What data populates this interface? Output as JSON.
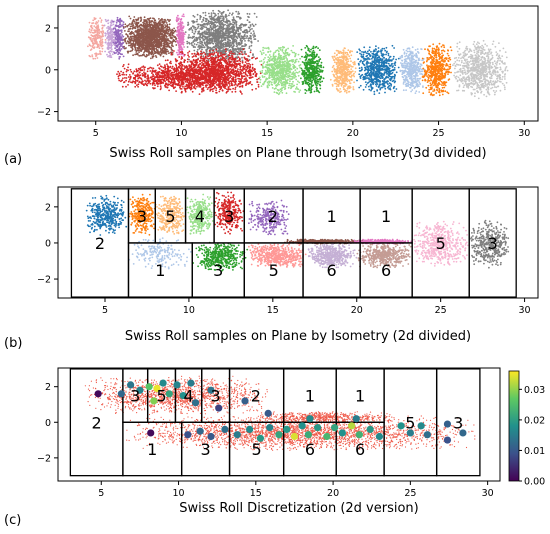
{
  "chart_data": [
    {
      "type": "scatter",
      "panel_label": "(a)",
      "title": "Swiss Roll samples on Plane through Isometry(3d divided)",
      "xlim": [
        2.8,
        30.8
      ],
      "ylim": [
        -2.45,
        3.05
      ],
      "xticks": [
        5,
        10,
        15,
        20,
        25,
        30
      ],
      "yticks": [
        -2,
        0,
        2
      ],
      "xtick_labels": [
        "5",
        "10",
        "15",
        "20",
        "25",
        "30"
      ],
      "ytick_labels": [
        "−2",
        "0",
        "2"
      ],
      "clusters": [
        {
          "x": [
            4.5,
            5.6
          ],
          "y": [
            0.4,
            2.6
          ],
          "color": "#f4a6a0",
          "n": 200
        },
        {
          "x": [
            5.5,
            6.2
          ],
          "y": [
            0.5,
            2.6
          ],
          "color": "#c7a4d8",
          "n": 160
        },
        {
          "x": [
            6.0,
            6.7
          ],
          "y": [
            0.5,
            2.6
          ],
          "color": "#9467bd",
          "n": 180
        },
        {
          "x": [
            6.6,
            9.8
          ],
          "y": [
            0.5,
            2.6
          ],
          "color": "#8c564b",
          "n": 1400
        },
        {
          "x": [
            9.7,
            10.2
          ],
          "y": [
            0.5,
            2.7
          ],
          "color": "#e377c2",
          "n": 200
        },
        {
          "x": [
            10.2,
            14.5
          ],
          "y": [
            0.3,
            2.9
          ],
          "color": "#7f7f7f",
          "n": 1200
        },
        {
          "x": [
            6.0,
            13.0
          ],
          "y": [
            -1.0,
            0.3
          ],
          "color": "#d62728",
          "n": 700
        },
        {
          "x": [
            9.0,
            14.8
          ],
          "y": [
            -1.2,
            1.0
          ],
          "color": "#d62728",
          "n": 1400
        },
        {
          "x": [
            14.5,
            17.0
          ],
          "y": [
            -1.2,
            1.2
          ],
          "color": "#98df8a",
          "n": 650
        },
        {
          "x": [
            16.9,
            18.3
          ],
          "y": [
            -1.2,
            1.2
          ],
          "color": "#2ca02c",
          "n": 420
        },
        {
          "x": [
            18.7,
            20.2
          ],
          "y": [
            -1.2,
            1.2
          ],
          "color": "#ffbb78",
          "n": 420
        },
        {
          "x": [
            20.2,
            22.7
          ],
          "y": [
            -1.2,
            1.2
          ],
          "color": "#1f77b4",
          "n": 650
        },
        {
          "x": [
            22.7,
            24.2
          ],
          "y": [
            -1.2,
            1.2
          ],
          "color": "#aec7e8",
          "n": 420
        },
        {
          "x": [
            24.0,
            25.8
          ],
          "y": [
            -1.3,
            1.3
          ],
          "color": "#ff7f0e",
          "n": 520
        },
        {
          "x": [
            25.8,
            29.1
          ],
          "y": [
            -1.4,
            1.4
          ],
          "color": "#c7c7c7",
          "n": 750
        }
      ]
    },
    {
      "type": "scatter",
      "panel_label": "(b)",
      "title": "Swiss Roll samples on Plane by Isometry (2d divided)",
      "xlim": [
        2.2,
        30.8
      ],
      "ylim": [
        -3.05,
        3.1
      ],
      "xticks": [
        5,
        10,
        15,
        20,
        25,
        30
      ],
      "yticks": [
        -2,
        0,
        2
      ],
      "xtick_labels": [
        "5",
        "10",
        "15",
        "20",
        "25",
        "30"
      ],
      "ytick_labels": [
        "−2",
        "0",
        "2"
      ],
      "clusters": [
        {
          "x": [
            3.8,
            6.4
          ],
          "y": [
            0.4,
            2.7
          ],
          "color": "#1f77b4",
          "n": 380
        },
        {
          "x": [
            6.4,
            8.0
          ],
          "y": [
            0.4,
            2.7
          ],
          "color": "#ff7f0e",
          "n": 300
        },
        {
          "x": [
            8.0,
            9.8
          ],
          "y": [
            0.4,
            2.7
          ],
          "color": "#ffbb78",
          "n": 300
        },
        {
          "x": [
            9.8,
            11.5
          ],
          "y": [
            0.4,
            2.7
          ],
          "color": "#98df8a",
          "n": 300
        },
        {
          "x": [
            11.5,
            13.3
          ],
          "y": [
            0.4,
            2.9
          ],
          "color": "#d62728",
          "n": 300
        },
        {
          "x": [
            13.5,
            16.0
          ],
          "y": [
            0.4,
            2.4
          ],
          "color": "#9467bd",
          "n": 280
        },
        {
          "x": [
            15.5,
            20.5
          ],
          "y": [
            -0.05,
            0.2
          ],
          "color": "#8c564b",
          "n": 380
        },
        {
          "x": [
            19.5,
            23.3
          ],
          "y": [
            -0.05,
            0.2
          ],
          "color": "#e377c2",
          "n": 280
        },
        {
          "x": [
            6.4,
            10.2
          ],
          "y": [
            -1.5,
            0.4
          ],
          "color": "#aec7e8",
          "n": 180
        },
        {
          "x": [
            10.2,
            13.5
          ],
          "y": [
            -1.6,
            0.1
          ],
          "color": "#2ca02c",
          "n": 420
        },
        {
          "x": [
            13.5,
            17.0
          ],
          "y": [
            -1.4,
            0.0
          ],
          "color": "#ff9896",
          "n": 500
        },
        {
          "x": [
            17.0,
            20.0
          ],
          "y": [
            -1.4,
            0.0
          ],
          "color": "#c5b0d5",
          "n": 480
        },
        {
          "x": [
            20.0,
            23.3
          ],
          "y": [
            -1.4,
            0.0
          ],
          "color": "#c49c94",
          "n": 480
        },
        {
          "x": [
            23.3,
            26.7
          ],
          "y": [
            -1.4,
            1.2
          ],
          "color": "#f7b6d2",
          "n": 500
        },
        {
          "x": [
            26.7,
            29.2
          ],
          "y": [
            -1.4,
            1.3
          ],
          "color": "#7f7f7f",
          "n": 420
        }
      ],
      "partition_boxes": [
        [
          3.0,
          6.4,
          -3.0,
          3.0
        ],
        [
          6.4,
          8.0,
          0.0,
          3.0
        ],
        [
          8.0,
          9.8,
          0.0,
          3.0
        ],
        [
          9.8,
          11.5,
          0.0,
          3.0
        ],
        [
          11.5,
          13.3,
          0.0,
          3.0
        ],
        [
          13.3,
          16.8,
          0.0,
          3.0
        ],
        [
          16.8,
          20.2,
          0.0,
          3.0
        ],
        [
          20.2,
          23.3,
          0.0,
          3.0
        ],
        [
          6.4,
          10.2,
          -3.0,
          0.0
        ],
        [
          10.2,
          13.3,
          -3.0,
          0.0
        ],
        [
          13.3,
          16.8,
          -3.0,
          0.0
        ],
        [
          16.8,
          20.2,
          -3.0,
          0.0
        ],
        [
          20.2,
          23.3,
          -3.0,
          0.0
        ],
        [
          23.3,
          26.7,
          -3.0,
          3.0
        ],
        [
          26.7,
          29.5,
          -3.0,
          3.0
        ]
      ],
      "cell_labels": [
        {
          "text": "2",
          "x": 4.7,
          "y": 0.0
        },
        {
          "text": "3",
          "x": 7.2,
          "y": 1.5
        },
        {
          "text": "5",
          "x": 8.9,
          "y": 1.5
        },
        {
          "text": "4",
          "x": 10.65,
          "y": 1.5
        },
        {
          "text": "3",
          "x": 12.4,
          "y": 1.5
        },
        {
          "text": "2",
          "x": 15.0,
          "y": 1.5
        },
        {
          "text": "1",
          "x": 18.5,
          "y": 1.5
        },
        {
          "text": "1",
          "x": 21.75,
          "y": 1.5
        },
        {
          "text": "1",
          "x": 8.3,
          "y": -1.5
        },
        {
          "text": "3",
          "x": 11.75,
          "y": -1.5
        },
        {
          "text": "5",
          "x": 15.05,
          "y": -1.5
        },
        {
          "text": "6",
          "x": 18.5,
          "y": -1.5
        },
        {
          "text": "6",
          "x": 21.75,
          "y": -1.5
        },
        {
          "text": "5",
          "x": 25.0,
          "y": 0.0
        },
        {
          "text": "3",
          "x": 28.1,
          "y": 0.0
        }
      ]
    },
    {
      "type": "scatter",
      "panel_label": "(c)",
      "title": "Swiss Roll Discretization (2d version)",
      "xlim": [
        2.2,
        30.8
      ],
      "ylim": [
        -3.3,
        3.05
      ],
      "xticks": [
        5,
        10,
        15,
        20,
        25,
        30
      ],
      "yticks": [
        -2,
        0,
        2
      ],
      "xtick_labels": [
        "5",
        "10",
        "15",
        "20",
        "25",
        "30"
      ],
      "ytick_labels": [
        "−2",
        "0",
        "2"
      ],
      "background_color": "#ef5a4a",
      "background_regions": [
        {
          "x": [
            3.8,
            16.0
          ],
          "y": [
            0.4,
            2.6
          ],
          "n": 1500
        },
        {
          "x": [
            6.4,
            29.3
          ],
          "y": [
            -1.6,
            0.4
          ],
          "n": 2800
        },
        {
          "x": [
            15.0,
            24.0
          ],
          "y": [
            0.0,
            0.6
          ],
          "n": 500
        }
      ],
      "partition_boxes": [
        [
          3.0,
          6.4,
          -3.0,
          3.0
        ],
        [
          6.4,
          8.0,
          0.0,
          3.0
        ],
        [
          8.0,
          9.8,
          0.0,
          3.0
        ],
        [
          9.8,
          11.5,
          0.0,
          3.0
        ],
        [
          11.5,
          13.3,
          0.0,
          3.0
        ],
        [
          13.3,
          16.8,
          0.0,
          3.0
        ],
        [
          16.8,
          20.2,
          0.0,
          3.0
        ],
        [
          20.2,
          23.3,
          0.0,
          3.0
        ],
        [
          6.4,
          10.2,
          -3.0,
          0.0
        ],
        [
          10.2,
          13.3,
          -3.0,
          0.0
        ],
        [
          13.3,
          16.8,
          -3.0,
          0.0
        ],
        [
          16.8,
          20.2,
          -3.0,
          0.0
        ],
        [
          20.2,
          23.3,
          -3.0,
          0.0
        ],
        [
          23.3,
          26.7,
          -3.0,
          3.0
        ],
        [
          26.7,
          29.5,
          -3.0,
          3.0
        ]
      ],
      "cell_labels": [
        {
          "text": "2",
          "x": 4.7,
          "y": 0.0
        },
        {
          "text": "3",
          "x": 7.2,
          "y": 1.5
        },
        {
          "text": "5",
          "x": 8.9,
          "y": 1.5
        },
        {
          "text": "4",
          "x": 10.65,
          "y": 1.5
        },
        {
          "text": "3",
          "x": 12.4,
          "y": 1.5
        },
        {
          "text": "2",
          "x": 15.0,
          "y": 1.5
        },
        {
          "text": "1",
          "x": 18.5,
          "y": 1.5
        },
        {
          "text": "1",
          "x": 21.75,
          "y": 1.5
        },
        {
          "text": "1",
          "x": 8.3,
          "y": -1.5
        },
        {
          "text": "3",
          "x": 11.75,
          "y": -1.5
        },
        {
          "text": "5",
          "x": 15.05,
          "y": -1.5
        },
        {
          "text": "6",
          "x": 18.5,
          "y": -1.5
        },
        {
          "text": "6",
          "x": 21.75,
          "y": -1.5
        },
        {
          "text": "5",
          "x": 25.0,
          "y": 0.0
        },
        {
          "text": "3",
          "x": 28.1,
          "y": 0.0
        }
      ],
      "centers": [
        {
          "x": 4.8,
          "y": 1.6,
          "v": 0.001
        },
        {
          "x": 6.3,
          "y": 1.6,
          "v": 0.012
        },
        {
          "x": 6.9,
          "y": 2.1,
          "v": 0.014
        },
        {
          "x": 7.5,
          "y": 1.8,
          "v": 0.016
        },
        {
          "x": 8.1,
          "y": 2.0,
          "v": 0.026
        },
        {
          "x": 8.4,
          "y": 1.2,
          "v": 0.029
        },
        {
          "x": 8.6,
          "y": 1.9,
          "v": 0.035
        },
        {
          "x": 9.0,
          "y": 2.2,
          "v": 0.017
        },
        {
          "x": 9.4,
          "y": 1.6,
          "v": 0.021
        },
        {
          "x": 9.9,
          "y": 2.1,
          "v": 0.016
        },
        {
          "x": 10.3,
          "y": 1.5,
          "v": 0.018
        },
        {
          "x": 10.8,
          "y": 2.2,
          "v": 0.015
        },
        {
          "x": 11.1,
          "y": 1.1,
          "v": 0.013
        },
        {
          "x": 12.1,
          "y": 1.8,
          "v": 0.014
        },
        {
          "x": 12.6,
          "y": 0.8,
          "v": 0.007
        },
        {
          "x": 14.3,
          "y": 1.2,
          "v": 0.011
        },
        {
          "x": 15.8,
          "y": 0.5,
          "v": 0.01
        },
        {
          "x": 18.5,
          "y": 0.2,
          "v": 0.017
        },
        {
          "x": 21.5,
          "y": 0.2,
          "v": 0.015
        },
        {
          "x": 8.2,
          "y": -0.6,
          "v": 0.001
        },
        {
          "x": 10.6,
          "y": -0.7,
          "v": 0.009
        },
        {
          "x": 11.4,
          "y": -0.5,
          "v": 0.012
        },
        {
          "x": 12.1,
          "y": -0.8,
          "v": 0.01
        },
        {
          "x": 13.0,
          "y": -0.4,
          "v": 0.013
        },
        {
          "x": 13.8,
          "y": -0.7,
          "v": 0.015
        },
        {
          "x": 14.6,
          "y": -0.4,
          "v": 0.017
        },
        {
          "x": 15.3,
          "y": -0.9,
          "v": 0.019
        },
        {
          "x": 15.9,
          "y": -0.3,
          "v": 0.016
        },
        {
          "x": 16.5,
          "y": -0.7,
          "v": 0.021
        },
        {
          "x": 17.0,
          "y": -0.4,
          "v": 0.019
        },
        {
          "x": 17.5,
          "y": -0.8,
          "v": 0.034
        },
        {
          "x": 18.0,
          "y": -0.2,
          "v": 0.018
        },
        {
          "x": 18.4,
          "y": -0.7,
          "v": 0.022
        },
        {
          "x": 19.0,
          "y": -0.3,
          "v": 0.019
        },
        {
          "x": 19.6,
          "y": -0.8,
          "v": 0.024
        },
        {
          "x": 20.1,
          "y": -0.3,
          "v": 0.021
        },
        {
          "x": 20.6,
          "y": -0.6,
          "v": 0.018
        },
        {
          "x": 21.2,
          "y": -0.2,
          "v": 0.032
        },
        {
          "x": 21.7,
          "y": -0.7,
          "v": 0.023
        },
        {
          "x": 22.4,
          "y": -0.4,
          "v": 0.019
        },
        {
          "x": 23.0,
          "y": -0.8,
          "v": 0.017
        },
        {
          "x": 24.4,
          "y": -0.2,
          "v": 0.018
        },
        {
          "x": 25.0,
          "y": -0.6,
          "v": 0.015
        },
        {
          "x": 25.7,
          "y": -0.2,
          "v": 0.017
        },
        {
          "x": 26.1,
          "y": -0.7,
          "v": 0.013
        },
        {
          "x": 27.4,
          "y": -0.1,
          "v": 0.011
        },
        {
          "x": 27.4,
          "y": -1.0,
          "v": 0.009
        },
        {
          "x": 28.4,
          "y": -0.6,
          "v": 0.012
        }
      ],
      "colorbar": {
        "min": 0.0,
        "max": 0.036,
        "ticks": [
          0.0,
          0.01,
          0.02,
          0.03
        ],
        "tick_labels": [
          "0.00",
          "0.01",
          "0.02",
          "0.03"
        ],
        "colormap": "viridis"
      }
    }
  ]
}
